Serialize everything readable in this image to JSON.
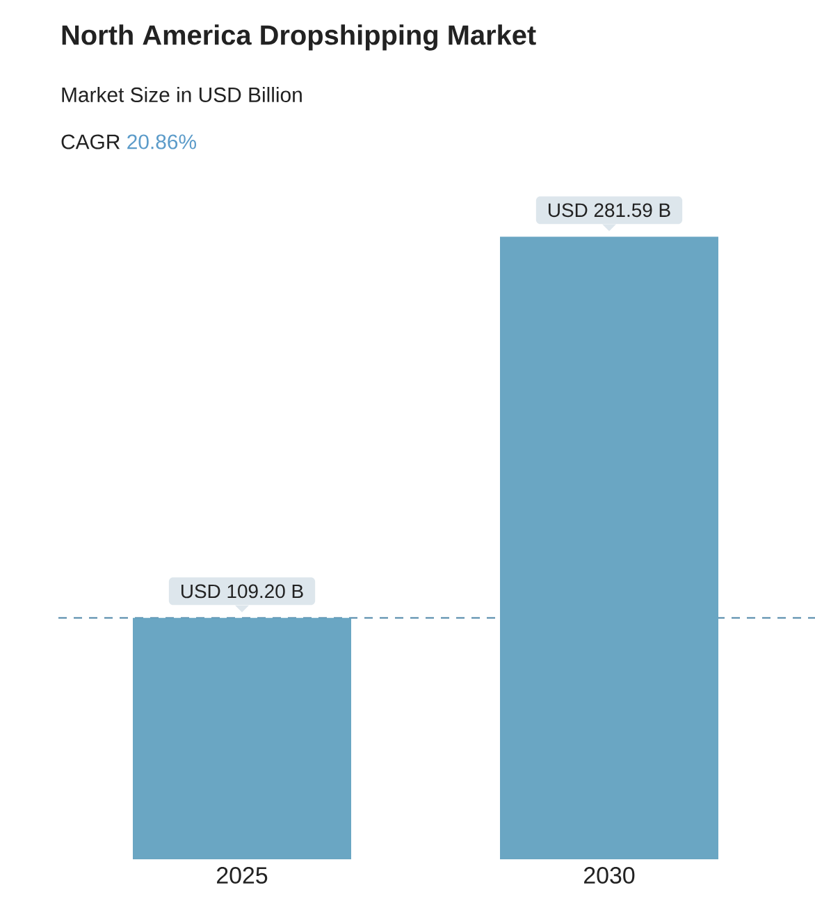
{
  "chart_data": {
    "type": "bar",
    "title": "North America Dropshipping Market",
    "subtitle": "Market Size in USD Billion",
    "annotations": [
      "CAGR",
      "20.86%"
    ],
    "categories": [
      "2025",
      "2030"
    ],
    "values": [
      109.2,
      281.59
    ],
    "color": "#6aa6c3",
    "value_labels": [
      "USD 109.20 B",
      "USD 281.59 B"
    ],
    "ref_lines": [
      {
        "axis": "y",
        "value": 109.2,
        "color": "#4f86a8",
        "line_style": "dashed"
      }
    ]
  }
}
